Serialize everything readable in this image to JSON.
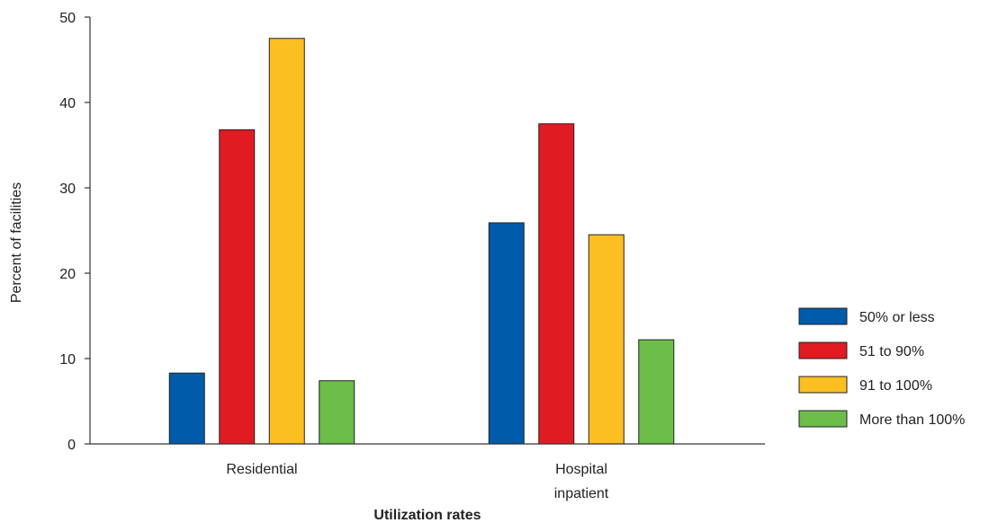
{
  "chart_data": {
    "type": "bar",
    "xlabel": "Utilization rates",
    "ylabel": "Percent of facilities",
    "ylim": [
      0,
      50
    ],
    "yticks": [
      "0",
      "10",
      "20",
      "30",
      "40",
      "50"
    ],
    "grid": false,
    "legend_position": "right",
    "categories": [
      [
        "Residential"
      ],
      [
        "Hospital",
        "inpatient"
      ]
    ],
    "series": [
      {
        "name": "50% or less",
        "color": "#005baa",
        "values": [
          8.3,
          25.9
        ]
      },
      {
        "name": "51 to 90%",
        "color": "#e01b22",
        "values": [
          36.8,
          37.5
        ]
      },
      {
        "name": "91 to 100%",
        "color": "#fbbf21",
        "values": [
          47.5,
          24.5
        ]
      },
      {
        "name": "More than 100%",
        "color": "#6cbd4a",
        "values": [
          7.4,
          12.2
        ]
      }
    ]
  }
}
